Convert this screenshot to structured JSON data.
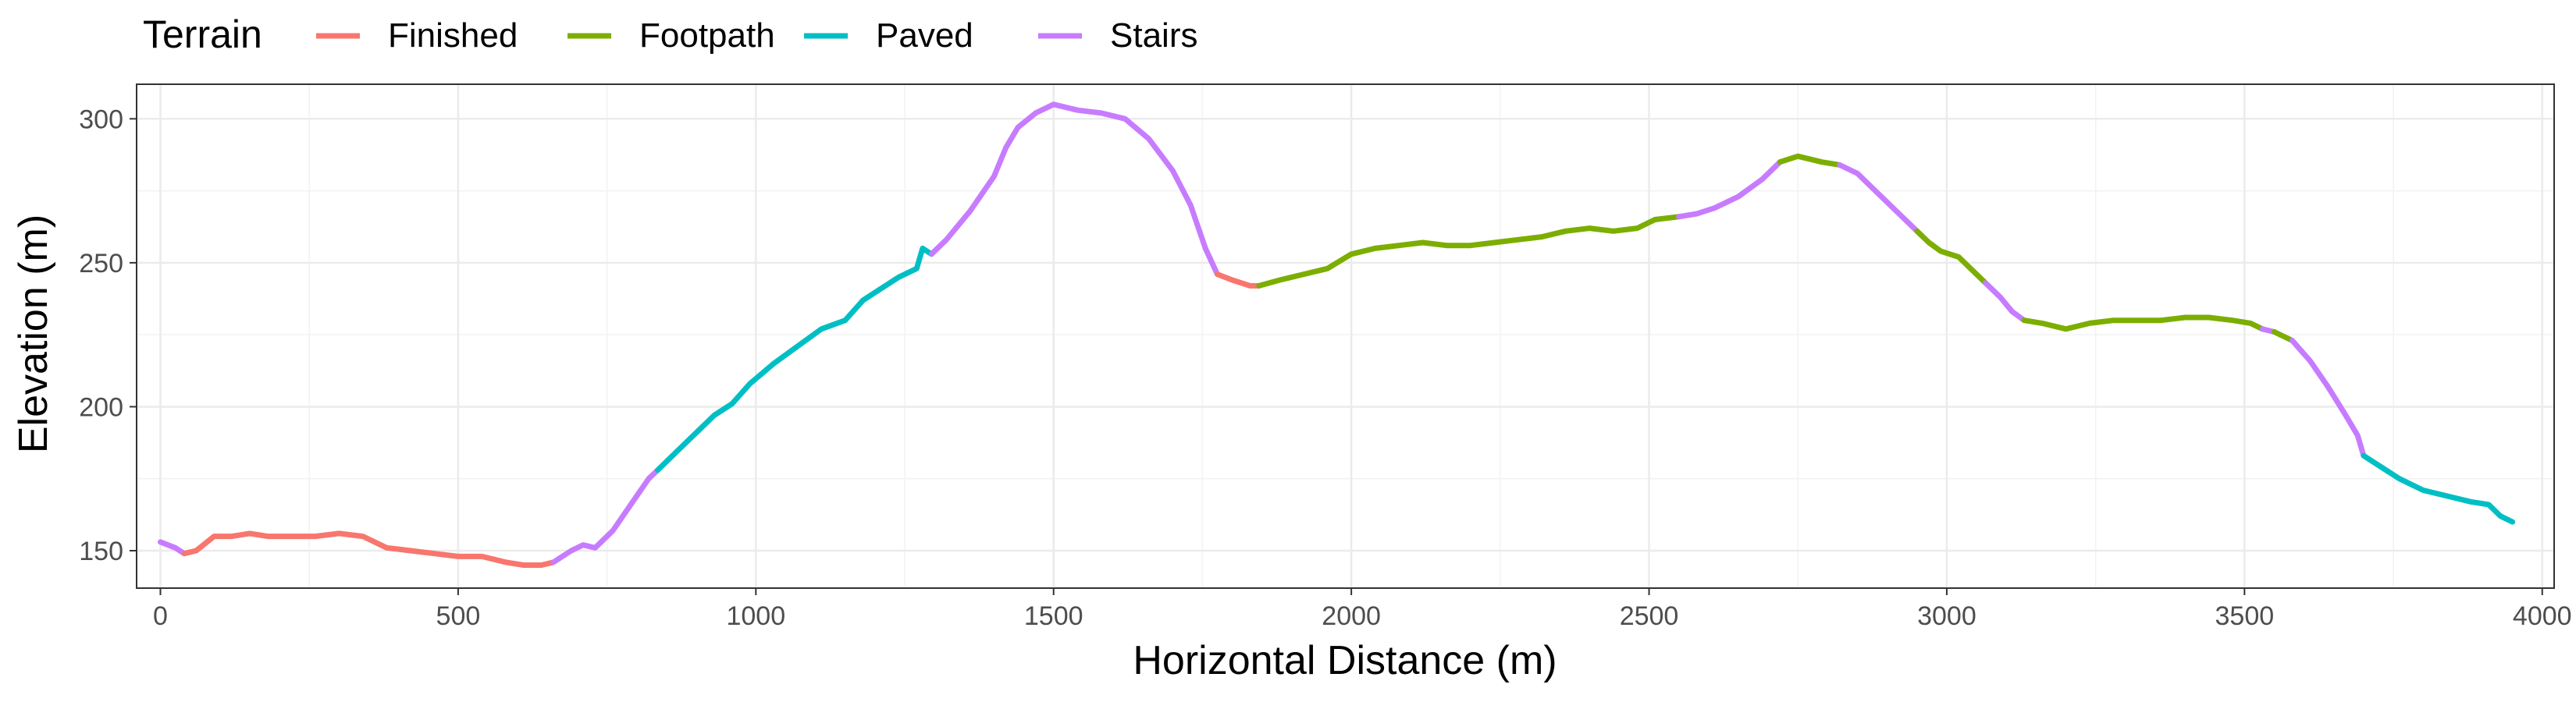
{
  "chart_data": {
    "type": "line",
    "title": "",
    "xlabel": "Horizontal Distance (m)",
    "ylabel": "Elevation (m)",
    "xlim": [
      -40,
      4020
    ],
    "ylim": [
      137,
      312
    ],
    "x_ticks": [
      0,
      500,
      1000,
      1500,
      2000,
      2500,
      3000,
      3500,
      4000
    ],
    "y_ticks": [
      150,
      200,
      250,
      300
    ],
    "grid": true,
    "legend": {
      "title": "Terrain",
      "position": "top-left",
      "entries": [
        "Finished",
        "Footpath",
        "Paved",
        "Stairs"
      ]
    },
    "colors": {
      "Finished": "#F8766D",
      "Footpath": "#7CAE00",
      "Paved": "#00BFC4",
      "Stairs": "#C77CFF"
    },
    "segments": [
      {
        "terrain": "Stairs",
        "points": [
          [
            0,
            153
          ],
          [
            25,
            151
          ],
          [
            40,
            149
          ]
        ]
      },
      {
        "terrain": "Finished",
        "points": [
          [
            40,
            149
          ],
          [
            60,
            150
          ],
          [
            90,
            155
          ],
          [
            120,
            155
          ],
          [
            150,
            156
          ],
          [
            180,
            155
          ],
          [
            220,
            155
          ],
          [
            260,
            155
          ],
          [
            300,
            156
          ],
          [
            340,
            155
          ],
          [
            380,
            151
          ],
          [
            420,
            150
          ],
          [
            460,
            149
          ],
          [
            500,
            148
          ],
          [
            540,
            148
          ],
          [
            580,
            146
          ],
          [
            610,
            145
          ],
          [
            640,
            145
          ],
          [
            660,
            146
          ]
        ]
      },
      {
        "terrain": "Stairs",
        "points": [
          [
            660,
            146
          ],
          [
            690,
            150
          ],
          [
            710,
            152
          ],
          [
            730,
            151
          ],
          [
            760,
            157
          ],
          [
            790,
            166
          ],
          [
            820,
            175
          ],
          [
            835,
            178
          ]
        ]
      },
      {
        "terrain": "Paved",
        "points": [
          [
            835,
            178
          ],
          [
            870,
            185
          ],
          [
            900,
            191
          ],
          [
            930,
            197
          ],
          [
            960,
            201
          ],
          [
            990,
            208
          ],
          [
            1030,
            215
          ],
          [
            1070,
            221
          ],
          [
            1110,
            227
          ],
          [
            1150,
            230
          ],
          [
            1180,
            237
          ],
          [
            1210,
            241
          ],
          [
            1240,
            245
          ],
          [
            1270,
            248
          ],
          [
            1280,
            255
          ],
          [
            1295,
            253
          ]
        ]
      },
      {
        "terrain": "Stairs",
        "points": [
          [
            1295,
            253
          ],
          [
            1320,
            258
          ],
          [
            1360,
            268
          ],
          [
            1400,
            280
          ],
          [
            1420,
            290
          ],
          [
            1440,
            297
          ],
          [
            1470,
            302
          ],
          [
            1500,
            305
          ],
          [
            1540,
            303
          ],
          [
            1580,
            302
          ],
          [
            1620,
            300
          ],
          [
            1660,
            293
          ],
          [
            1700,
            282
          ],
          [
            1730,
            270
          ],
          [
            1755,
            255
          ],
          [
            1775,
            246
          ]
        ]
      },
      {
        "terrain": "Finished",
        "points": [
          [
            1775,
            246
          ],
          [
            1800,
            244
          ],
          [
            1830,
            242
          ],
          [
            1845,
            242
          ]
        ]
      },
      {
        "terrain": "Footpath",
        "points": [
          [
            1845,
            242
          ],
          [
            1880,
            244
          ],
          [
            1920,
            246
          ],
          [
            1960,
            248
          ],
          [
            2000,
            253
          ],
          [
            2040,
            255
          ],
          [
            2080,
            256
          ],
          [
            2120,
            257
          ],
          [
            2160,
            256
          ],
          [
            2200,
            256
          ],
          [
            2240,
            257
          ],
          [
            2280,
            258
          ],
          [
            2320,
            259
          ],
          [
            2360,
            261
          ],
          [
            2400,
            262
          ],
          [
            2440,
            261
          ],
          [
            2480,
            262
          ],
          [
            2510,
            265
          ],
          [
            2550,
            266
          ]
        ]
      },
      {
        "terrain": "Stairs",
        "points": [
          [
            2550,
            266
          ],
          [
            2580,
            267
          ],
          [
            2610,
            269
          ],
          [
            2650,
            273
          ],
          [
            2690,
            279
          ],
          [
            2720,
            285
          ]
        ]
      },
      {
        "terrain": "Footpath",
        "points": [
          [
            2720,
            285
          ],
          [
            2750,
            287
          ],
          [
            2790,
            285
          ],
          [
            2820,
            284
          ]
        ]
      },
      {
        "terrain": "Stairs",
        "points": [
          [
            2820,
            284
          ],
          [
            2850,
            281
          ],
          [
            2880,
            275
          ],
          [
            2920,
            267
          ],
          [
            2950,
            261
          ]
        ]
      },
      {
        "terrain": "Footpath",
        "points": [
          [
            2950,
            261
          ],
          [
            2970,
            257
          ],
          [
            2990,
            254
          ],
          [
            3020,
            252
          ],
          [
            3040,
            248
          ],
          [
            3065,
            243
          ]
        ]
      },
      {
        "terrain": "Stairs",
        "points": [
          [
            3065,
            243
          ],
          [
            3090,
            238
          ],
          [
            3110,
            233
          ],
          [
            3130,
            230
          ]
        ]
      },
      {
        "terrain": "Footpath",
        "points": [
          [
            3130,
            230
          ],
          [
            3160,
            229
          ],
          [
            3200,
            227
          ],
          [
            3240,
            229
          ],
          [
            3280,
            230
          ],
          [
            3320,
            230
          ],
          [
            3360,
            230
          ],
          [
            3400,
            231
          ],
          [
            3440,
            231
          ],
          [
            3480,
            230
          ],
          [
            3510,
            229
          ],
          [
            3530,
            227
          ]
        ]
      },
      {
        "terrain": "Stairs",
        "points": [
          [
            3530,
            227
          ],
          [
            3550,
            226
          ]
        ]
      },
      {
        "terrain": "Footpath",
        "points": [
          [
            3550,
            226
          ],
          [
            3580,
            223
          ]
        ]
      },
      {
        "terrain": "Stairs",
        "points": [
          [
            3580,
            223
          ],
          [
            3610,
            216
          ],
          [
            3640,
            207
          ],
          [
            3670,
            197
          ],
          [
            3690,
            190
          ],
          [
            3700,
            183
          ]
        ]
      },
      {
        "terrain": "Paved",
        "points": [
          [
            3700,
            183
          ],
          [
            3730,
            179
          ],
          [
            3760,
            175
          ],
          [
            3800,
            171
          ],
          [
            3840,
            169
          ],
          [
            3880,
            167
          ],
          [
            3910,
            166
          ],
          [
            3930,
            162
          ],
          [
            3950,
            160
          ]
        ]
      }
    ]
  }
}
